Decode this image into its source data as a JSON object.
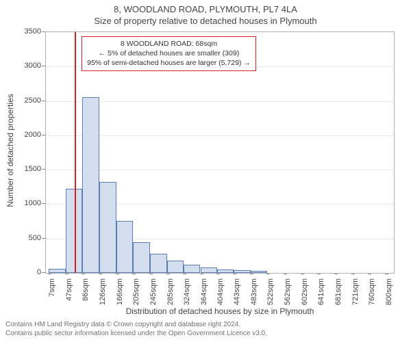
{
  "title_main": "8, WOODLAND ROAD, PLYMOUTH, PL7 4LA",
  "title_sub": "Size of property relative to detached houses in Plymouth",
  "y_axis": {
    "title": "Number of detached properties",
    "min": 0,
    "max": 3500,
    "ticks": [
      0,
      500,
      1000,
      1500,
      2000,
      2500,
      3000,
      3500
    ]
  },
  "x_axis": {
    "title": "Distribution of detached houses by size in Plymouth",
    "min": 0,
    "max": 820,
    "tick_labels": [
      "7sqm",
      "47sqm",
      "86sqm",
      "126sqm",
      "166sqm",
      "205sqm",
      "245sqm",
      "285sqm",
      "324sqm",
      "364sqm",
      "404sqm",
      "443sqm",
      "483sqm",
      "522sqm",
      "562sqm",
      "602sqm",
      "641sqm",
      "681sqm",
      "721sqm",
      "760sqm",
      "800sqm"
    ],
    "tick_values": [
      7,
      47,
      86,
      126,
      166,
      205,
      245,
      285,
      324,
      364,
      404,
      443,
      483,
      522,
      562,
      602,
      641,
      681,
      721,
      760,
      800
    ]
  },
  "bars": {
    "bin_edges": [
      7,
      47,
      86,
      126,
      166,
      205,
      245,
      285,
      324,
      364,
      404,
      443,
      483,
      522,
      562,
      602,
      641,
      681,
      721,
      760,
      800
    ],
    "values": [
      60,
      1220,
      2560,
      1320,
      760,
      450,
      280,
      180,
      120,
      75,
      50,
      40,
      30,
      0,
      0,
      0,
      0,
      0,
      0,
      0
    ],
    "fill_color": "#d3dff0",
    "border_color": "#5b7db3"
  },
  "marker": {
    "x_value": 68,
    "color": "#d42020"
  },
  "annotation": {
    "line1": "8 WOODLAND ROAD: 68sqm",
    "line2": "← 5% of detached houses are smaller (309)",
    "line3": "95% of semi-detached houses are larger (5,729) →",
    "border_color": "#d42020"
  },
  "footer": {
    "line1": "Contains HM Land Registry data © Crown copyright and database right 2024.",
    "line2": "Contains public sector information licensed under the Open Government Licence v3.0."
  },
  "style": {
    "background_color": "#ffffff",
    "grid_color": "#e8e8e8",
    "axis_color": "#b0b0b0",
    "font_family": "Arial, Helvetica, sans-serif",
    "title_fontsize": 13,
    "tick_fontsize": 11,
    "axis_title_fontsize": 12,
    "footer_fontsize": 10
  }
}
